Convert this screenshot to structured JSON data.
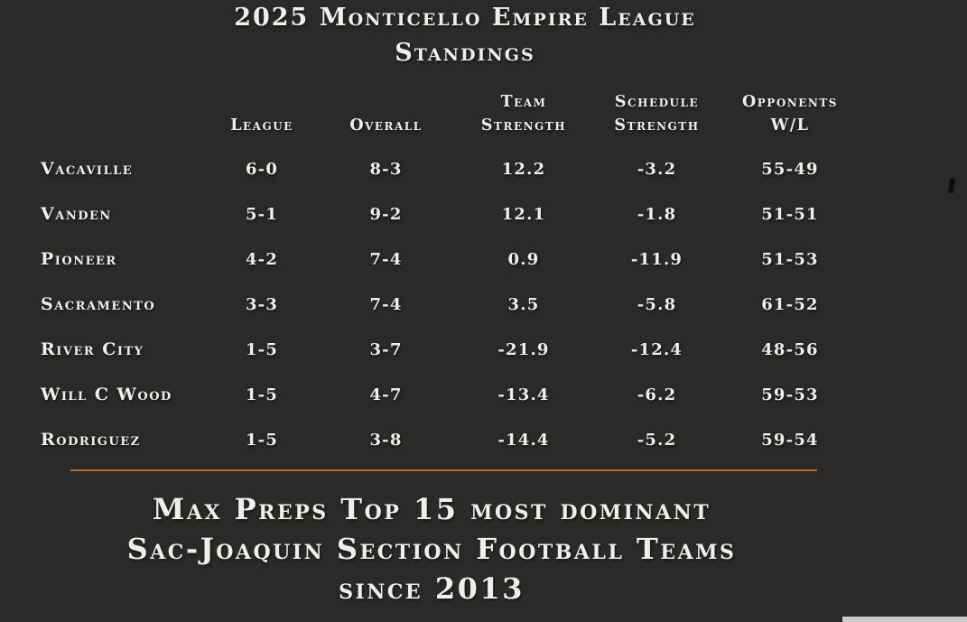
{
  "title": {
    "line1": "2025 Monticello Empire League",
    "line2": "Standings"
  },
  "table": {
    "headers": {
      "league_label": "League",
      "overall_label": "Overall",
      "team_line1": "Team",
      "team_line2": "Strength",
      "schedule_line1": "Schedule",
      "schedule_line2": "Strength",
      "opponents_line1": "Opponents",
      "opponents_line2": "W/L"
    },
    "rows": [
      {
        "team": "Vacaville",
        "league": "6-0",
        "overall": "8-3",
        "team_strength": "12.2",
        "schedule_strength": "-3.2",
        "opponents_wl": "55-49"
      },
      {
        "team": "Vanden",
        "league": "5-1",
        "overall": "9-2",
        "team_strength": "12.1",
        "schedule_strength": "-1.8",
        "opponents_wl": "51-51"
      },
      {
        "team": "Pioneer",
        "league": "4-2",
        "overall": "7-4",
        "team_strength": "0.9",
        "schedule_strength": "-11.9",
        "opponents_wl": "51-53"
      },
      {
        "team": "Sacramento",
        "league": "3-3",
        "overall": "7-4",
        "team_strength": "3.5",
        "schedule_strength": "-5.8",
        "opponents_wl": "61-52"
      },
      {
        "team": "River City",
        "league": "1-5",
        "overall": "3-7",
        "team_strength": "-21.9",
        "schedule_strength": "-12.4",
        "opponents_wl": "48-56"
      },
      {
        "team": "Will C Wood",
        "league": "1-5",
        "overall": "4-7",
        "team_strength": "-13.4",
        "schedule_strength": "-6.2",
        "opponents_wl": "59-53"
      },
      {
        "team": "Rodriguez",
        "league": "1-5",
        "overall": "3-8",
        "team_strength": "-14.4",
        "schedule_strength": "-5.2",
        "opponents_wl": "59-54"
      }
    ]
  },
  "footer": {
    "line1": "Max Preps Top 15 most dominant",
    "line2": "Sac-Joaquin Section Football Teams",
    "line3": "since 2013"
  },
  "colors": {
    "background": "#2b2a28",
    "text": "#f0eeea",
    "divider": "#b5662f"
  },
  "chart_data": {
    "type": "table",
    "title": "2025 Monticello Empire League Standings",
    "columns": [
      "Team",
      "League",
      "Overall",
      "Team Strength",
      "Schedule Strength",
      "Opponents W/L"
    ],
    "rows": [
      [
        "Vacaville",
        "6-0",
        "8-3",
        12.2,
        -3.2,
        "55-49"
      ],
      [
        "Vanden",
        "5-1",
        "9-2",
        12.1,
        -1.8,
        "51-51"
      ],
      [
        "Pioneer",
        "4-2",
        "7-4",
        0.9,
        -11.9,
        "51-53"
      ],
      [
        "Sacramento",
        "3-3",
        "7-4",
        3.5,
        -5.8,
        "61-52"
      ],
      [
        "River City",
        "1-5",
        "3-7",
        -21.9,
        -12.4,
        "48-56"
      ],
      [
        "Will C Wood",
        "1-5",
        "4-7",
        -13.4,
        -6.2,
        "59-53"
      ],
      [
        "Rodriguez",
        "1-5",
        "3-8",
        -14.4,
        -5.2,
        "59-54"
      ]
    ],
    "footnote": "Max Preps Top 15 most dominant Sac-Joaquin Section Football Teams since 2013"
  }
}
